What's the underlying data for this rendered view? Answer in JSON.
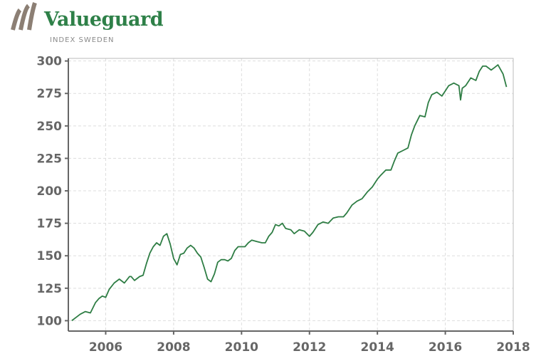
{
  "brand": {
    "name": "Valueguard",
    "subtitle": "INDEX SWEDEN"
  },
  "colors": {
    "line": "#2e7d44",
    "brand_green": "#2e8048",
    "logo_mark": "#8c7f74",
    "axis": "#666666",
    "grid": "#dddddd"
  },
  "chart_data": {
    "type": "line",
    "title": "",
    "xlabel": "",
    "ylabel": "",
    "xlim": [
      2004.9,
      2018.0
    ],
    "ylim": [
      92,
      302
    ],
    "grid": true,
    "x_ticks": [
      2006,
      2008,
      2010,
      2012,
      2014,
      2016,
      2018
    ],
    "x_tick_labels": [
      "2006",
      "2008",
      "2010",
      "2012",
      "2014",
      "2016",
      "2018"
    ],
    "y_ticks": [
      100,
      125,
      150,
      175,
      200,
      225,
      250,
      275,
      300
    ],
    "y_tick_labels": [
      "100",
      "125",
      "150",
      "175",
      "200",
      "225",
      "250",
      "275",
      "300"
    ],
    "series": [
      {
        "x": [
          2005.0,
          2005.1,
          2005.25,
          2005.4,
          2005.55,
          2005.7,
          2005.8,
          2005.9,
          2006.0,
          2006.1,
          2006.25,
          2006.4,
          2006.55,
          2006.7,
          2006.75,
          2006.85,
          2007.0,
          2007.1,
          2007.2,
          2007.3,
          2007.4,
          2007.5,
          2007.6,
          2007.7,
          2007.8,
          2007.9,
          2008.0,
          2008.1,
          2008.2,
          2008.3,
          2008.4,
          2008.5,
          2008.6,
          2008.7,
          2008.8,
          2008.9,
          2009.0,
          2009.1,
          2009.2,
          2009.3,
          2009.4,
          2009.5,
          2009.6,
          2009.7,
          2009.8,
          2009.9,
          2010.0,
          2010.1,
          2010.2,
          2010.3,
          2010.45,
          2010.6,
          2010.7,
          2010.8,
          2010.9,
          2011.0,
          2011.1,
          2011.2,
          2011.3,
          2011.45,
          2011.55,
          2011.7,
          2011.85,
          2012.0,
          2012.1,
          2012.25,
          2012.4,
          2012.55,
          2012.7,
          2012.85,
          2013.0,
          2013.1,
          2013.25,
          2013.4,
          2013.55,
          2013.7,
          2013.85,
          2014.0,
          2014.1,
          2014.25,
          2014.4,
          2014.5,
          2014.6,
          2014.75,
          2014.9,
          2015.0,
          2015.1,
          2015.25,
          2015.4,
          2015.5,
          2015.6,
          2015.75,
          2015.9,
          2016.0,
          2016.1,
          2016.25,
          2016.4,
          2016.45,
          2016.5,
          2016.6,
          2016.75,
          2016.9,
          2017.0,
          2017.1,
          2017.2,
          2017.35,
          2017.45,
          2017.55,
          2017.7,
          2017.8
        ],
        "values": [
          100,
          102,
          105,
          107,
          106,
          114,
          117,
          119,
          118,
          124,
          129,
          132,
          129,
          134,
          134,
          131,
          134,
          135,
          144,
          152,
          157,
          160,
          158,
          165,
          167,
          159,
          148,
          143,
          151,
          152,
          156,
          158,
          156,
          152,
          149,
          141,
          132,
          130,
          136,
          145,
          147,
          147,
          146,
          148,
          154,
          157,
          157,
          157,
          160,
          162,
          161,
          160,
          160,
          165,
          168,
          174,
          173,
          175,
          171,
          170,
          167,
          170,
          169,
          165,
          168,
          174,
          176,
          175,
          179,
          180,
          180,
          183,
          189,
          192,
          194,
          199,
          203,
          209,
          212,
          216,
          216,
          223,
          229,
          231,
          233,
          243,
          250,
          258,
          257,
          268,
          274,
          276,
          273,
          277,
          281,
          283,
          281,
          270,
          279,
          281,
          287,
          285,
          292,
          296,
          296,
          293,
          295,
          297,
          290,
          280
        ]
      }
    ]
  }
}
